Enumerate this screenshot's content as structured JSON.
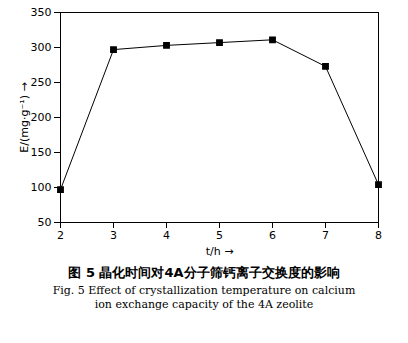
{
  "chart_data": {
    "type": "line",
    "title": "图 5   晶化时间对4A分子筛钙离子交换度的影响",
    "subtitle": "Fig. 5   Effect of crystallization temperature on calcium ion exchange capacity of the 4A zeolite",
    "x_label": "t/h",
    "y_label": "E/(mg·g⁻¹)",
    "x": [
      2,
      3,
      4,
      5,
      6,
      7,
      8
    ],
    "values": [
      97,
      297,
      303,
      307,
      311,
      273,
      104
    ],
    "color": "#000000",
    "marker": "square",
    "xlim": [
      2,
      8
    ],
    "xticks": [
      2,
      3,
      4,
      5,
      6,
      7,
      8
    ],
    "ylim": [
      50,
      350
    ],
    "yticks": [
      50,
      100,
      150,
      200,
      250,
      300,
      350
    ],
    "grid": false
  }
}
